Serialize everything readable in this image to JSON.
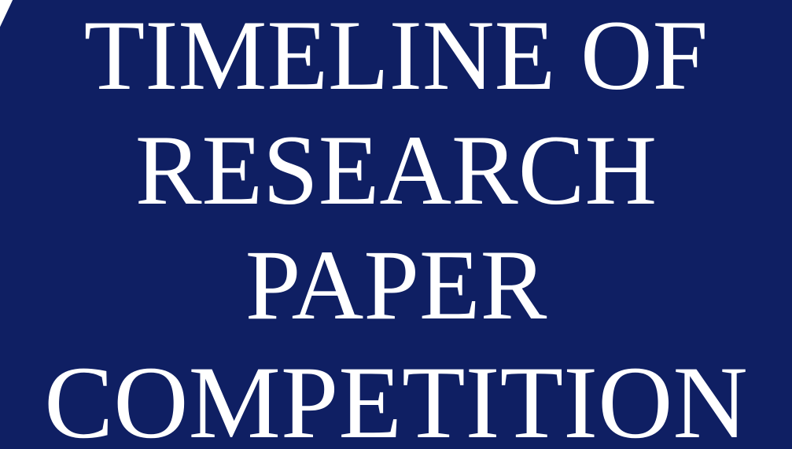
{
  "title": {
    "lines": [
      "TIMELINE OF",
      "RESEARCH",
      "PAPER",
      "COMPETITION"
    ]
  },
  "colors": {
    "background": "#0f1f63",
    "text": "#ffffff"
  }
}
